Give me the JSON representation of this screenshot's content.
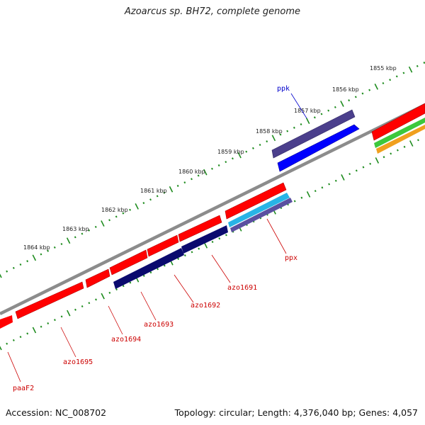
{
  "title": "Azoarcus sp. BH72, complete genome",
  "footer": {
    "accession": "Accession: NC_008702",
    "summary": "Topology: circular; Length: 4,376,040 bp; Genes: 4,057"
  },
  "scale_labels": [
    "1855 kbp",
    "1856 kbp",
    "1857 kbp",
    "1858 kbp",
    "1859 kbp",
    "1860 kbp",
    "1861 kbp",
    "1862 kbp",
    "1863 kbp",
    "1864 kbp"
  ],
  "gene_labels": [
    {
      "name": "ppk",
      "color": "#0000cc"
    },
    {
      "name": "ppx",
      "color": "#cc0000"
    },
    {
      "name": "azo1691",
      "color": "#cc0000"
    },
    {
      "name": "azo1692",
      "color": "#cc0000"
    },
    {
      "name": "azo1693",
      "color": "#cc0000"
    },
    {
      "name": "azo1694",
      "color": "#cc0000"
    },
    {
      "name": "azo1695",
      "color": "#cc0000"
    },
    {
      "name": "paaF2",
      "color": "#cc0000"
    }
  ],
  "colors": {
    "forward_gene": "#ff0000",
    "ppk_top": "#4b3f8c",
    "ppk_bottom": "#0000ff",
    "navy_gene": "#0a0a6e",
    "ppx_cyan": "#28b4e6",
    "ppx_purple": "#5a50a0",
    "green_gene": "#3cc83c",
    "orange_gene": "#f0a01e",
    "backbone": "#8c8c8c",
    "tick": "#1e8c1e"
  }
}
